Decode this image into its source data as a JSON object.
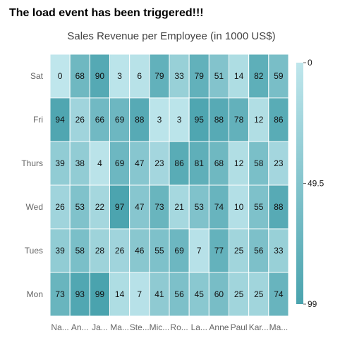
{
  "event_message": "The load event has been triggered!!!",
  "chart_data": {
    "type": "heatmap",
    "title": "Sales Revenue per Employee (in 1000 US$)",
    "x_labels": [
      "Na...",
      "An...",
      "Ja...",
      "Ma...",
      "Ste...",
      "Mic...",
      "Ro...",
      "La...",
      "Anne",
      "Paul",
      "Kar...",
      "Ma..."
    ],
    "y_labels": [
      "Sat",
      "Fri",
      "Thurs",
      "Wed",
      "Tues",
      "Mon"
    ],
    "values": [
      [
        0,
        68,
        90,
        3,
        6,
        79,
        33,
        79,
        51,
        14,
        82,
        59
      ],
      [
        94,
        26,
        66,
        69,
        88,
        3,
        3,
        95,
        88,
        78,
        12,
        86
      ],
      [
        39,
        38,
        4,
        69,
        47,
        23,
        86,
        81,
        68,
        12,
        58,
        23
      ],
      [
        26,
        53,
        22,
        97,
        47,
        73,
        21,
        53,
        74,
        10,
        55,
        88
      ],
      [
        39,
        58,
        28,
        26,
        46,
        55,
        69,
        7,
        77,
        25,
        56,
        33
      ],
      [
        73,
        93,
        99,
        14,
        7,
        41,
        56,
        45,
        60,
        25,
        25,
        74
      ]
    ],
    "color_min": "#bfe6ec",
    "color_max": "#4aa3ae",
    "legend": {
      "position": "right",
      "labels": [
        "0",
        "49.5",
        "99"
      ],
      "min": 0,
      "max": 99
    }
  }
}
